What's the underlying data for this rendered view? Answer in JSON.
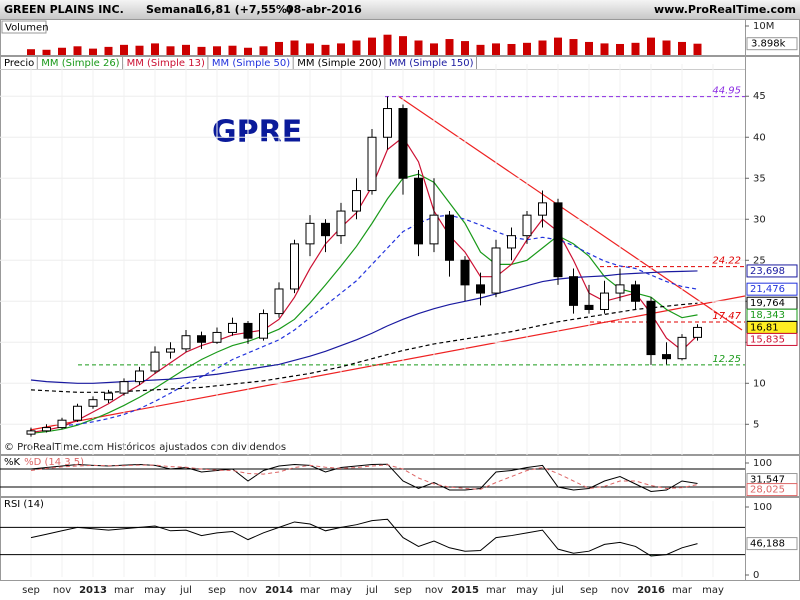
{
  "header": {
    "symbol": "GREEN PLAINS INC.",
    "period": "Semanal",
    "last": "16,81 (+7,55%)",
    "date": "08-abr-2016",
    "site": "www.ProRealTime.com"
  },
  "chart_data": [
    {
      "type": "bar",
      "title": "Volumen",
      "color": "#cc0000",
      "values": [
        2000000,
        1800000,
        2500000,
        3000000,
        2200000,
        2800000,
        3500000,
        3200000,
        4000000,
        3000000,
        3500000,
        2800000,
        3000000,
        3200000,
        2500000,
        3000000,
        4500000,
        5000000,
        4000000,
        3500000,
        4000000,
        5000000,
        6000000,
        7000000,
        6500000,
        5000000,
        4000000,
        5500000,
        4800000,
        3500000,
        4000000,
        3800000,
        4200000,
        5000000,
        6000000,
        5500000,
        4500000,
        4000000,
        3800000,
        4200000,
        6000000,
        5000000,
        4500000,
        3898000,
        null
      ],
      "value_labels": {
        "43": "3.898k"
      },
      "ylim": [
        0,
        10000000
      ],
      "yticks": [
        {
          "value": 10000000,
          "label": "10M"
        }
      ]
    },
    {
      "type": "candlestick",
      "price_name": "Precio",
      "categories": [
        "sep",
        null,
        "nov",
        null,
        "2013",
        null,
        "mar",
        null,
        "may",
        null,
        "jul",
        null,
        "sep",
        null,
        "nov",
        null,
        "2014",
        null,
        "mar",
        null,
        "may",
        null,
        "jul",
        null,
        "sep",
        null,
        "nov",
        null,
        "2015",
        null,
        "mar",
        null,
        "may",
        null,
        "jul",
        null,
        "sep",
        null,
        "nov",
        null,
        "2016",
        null,
        "mar",
        null,
        "may"
      ],
      "open": [
        3.8,
        4.2,
        4.6,
        5.5,
        7.2,
        8.0,
        8.8,
        10.2,
        11.5,
        13.8,
        14.2,
        15.8,
        15.0,
        16.2,
        17.3,
        15.5,
        18.5,
        21.5,
        27,
        29.5,
        28,
        31,
        33.5,
        40,
        43.5,
        35,
        27,
        30.5,
        25,
        22,
        21,
        26.5,
        28,
        30.5,
        32,
        23,
        19.5,
        19,
        21,
        22,
        20,
        13.5,
        13,
        15.6,
        null
      ],
      "high": [
        4.6,
        5.0,
        5.8,
        7.5,
        8.4,
        9.2,
        10.6,
        12.0,
        14.5,
        15.0,
        16.5,
        16.3,
        16.8,
        18.0,
        17.6,
        19.0,
        22.3,
        27.5,
        30.5,
        30,
        32,
        35,
        41,
        44.95,
        44,
        36,
        35,
        31,
        25.5,
        23.5,
        27.5,
        29,
        31,
        33.5,
        32.5,
        24,
        22,
        22.5,
        24,
        22.5,
        20.5,
        15,
        16,
        17.2,
        null
      ],
      "low": [
        3.5,
        4.0,
        4.4,
        5.3,
        6.9,
        7.6,
        8.5,
        9.8,
        11.2,
        13.0,
        13.8,
        14.2,
        14.8,
        15.8,
        14.8,
        15.2,
        18.0,
        21.0,
        25.5,
        26,
        27,
        30,
        33,
        38.5,
        33,
        25.5,
        26,
        23,
        20,
        19.5,
        20.5,
        25,
        27,
        29,
        22,
        18.5,
        18.5,
        18.5,
        20,
        19,
        12.25,
        12.3,
        12.8,
        15.2,
        null
      ],
      "close": [
        4.2,
        4.6,
        5.5,
        7.2,
        8.0,
        8.8,
        10.2,
        11.5,
        13.8,
        14.2,
        15.8,
        15.0,
        16.2,
        17.3,
        15.5,
        18.5,
        21.5,
        27,
        29.5,
        28,
        31,
        33.5,
        40,
        43.5,
        35,
        27,
        30.5,
        25,
        22,
        21,
        26.5,
        28,
        30.5,
        32,
        23,
        19.5,
        19,
        21,
        22,
        20,
        13.5,
        13,
        15.6,
        16.81,
        null
      ],
      "series": [
        {
          "name": "MM (Simple 26)",
          "color": "#1a9a1a",
          "dash": false,
          "values": [
            3.9,
            4.1,
            4.4,
            4.9,
            5.6,
            6.4,
            7.3,
            8.3,
            9.4,
            10.6,
            11.8,
            12.9,
            13.8,
            14.6,
            15.1,
            15.8,
            16.6,
            17.8,
            19.8,
            22,
            24.3,
            26.7,
            29.5,
            32.5,
            35,
            35.5,
            34.5,
            32,
            29.5,
            26,
            24.5,
            24.5,
            25,
            26.5,
            28,
            27,
            25.5,
            23,
            21.5,
            21,
            20.5,
            19,
            18,
            18.343,
            null
          ]
        },
        {
          "name": "MM (Simple 13)",
          "color": "#cc1133",
          "dash": false,
          "values": [
            4,
            4.3,
            4.7,
            5.5,
            6.5,
            7.5,
            8.7,
            9.8,
            11.2,
            12.5,
            13.8,
            14.6,
            15.2,
            15.9,
            16.2,
            16.5,
            17.8,
            20.5,
            24,
            27,
            29,
            30.8,
            34,
            38.5,
            40,
            37,
            31,
            28,
            26,
            23,
            23,
            24.5,
            27.5,
            30,
            28.5,
            25,
            21,
            20,
            20.5,
            21,
            18.5,
            15.5,
            14,
            15.835,
            null
          ]
        },
        {
          "name": "MM (Simple 50)",
          "color": "#2233dd",
          "dash": true,
          "values": [
            null,
            null,
            4.8,
            5,
            5.3,
            5.7,
            6.2,
            6.9,
            7.8,
            8.8,
            9.9,
            10.8,
            11.8,
            12.9,
            13.7,
            14.5,
            15.3,
            16.5,
            18,
            19.5,
            21,
            22.5,
            24.5,
            26.5,
            28.5,
            29.5,
            30.3,
            30.5,
            30,
            29.3,
            28.5,
            27.8,
            27.5,
            27.8,
            27.5,
            26.8,
            25.8,
            24.9,
            24.3,
            24,
            23.2,
            22.4,
            21.8,
            21.476,
            null
          ]
        },
        {
          "name": "MM (Simple 200)",
          "color": "#000000",
          "dash": true,
          "values": [
            9.2,
            9.1,
            9,
            8.9,
            8.9,
            8.9,
            9,
            9.1,
            9.2,
            9.3,
            9.4,
            9.5,
            9.7,
            9.9,
            10.1,
            10.3,
            10.6,
            10.9,
            11.2,
            11.6,
            12,
            12.5,
            13,
            13.5,
            14,
            14.4,
            14.8,
            15.1,
            15.4,
            15.7,
            16,
            16.3,
            16.7,
            17.1,
            17.5,
            17.8,
            18.1,
            18.4,
            18.7,
            19,
            19.2,
            19.4,
            19.6,
            19.764,
            null
          ]
        },
        {
          "name": "MM (Simple 150)",
          "color": "#1a1aa0",
          "dash": false,
          "values": [
            10.4,
            10.2,
            10.1,
            10,
            10,
            10.1,
            10.2,
            10.3,
            10.4,
            10.5,
            10.7,
            10.9,
            11.1,
            11.4,
            11.7,
            12,
            12.3,
            12.8,
            13.3,
            13.9,
            14.6,
            15.3,
            16.1,
            17,
            17.8,
            18.5,
            19.1,
            19.6,
            20,
            20.4,
            20.9,
            21.4,
            21.9,
            22.4,
            22.7,
            22.9,
            23,
            23.1,
            23.3,
            23.4,
            23.5,
            23.6,
            23.65,
            23.698,
            null
          ]
        }
      ],
      "levels": [
        {
          "value": 44.95,
          "label": "44.95",
          "color": "#8a2be2"
        },
        {
          "value": 24.22,
          "label": "24.22",
          "color": "#e00000"
        },
        {
          "value": 17.47,
          "label": "17.47",
          "color": "#e00000"
        },
        {
          "value": 12.25,
          "label": "12.25",
          "color": "#1a9a1a"
        }
      ],
      "last_values": [
        {
          "value": 23.698,
          "label": "23,698",
          "color": "#1a1aa0"
        },
        {
          "value": 21.476,
          "label": "21,476",
          "color": "#2233dd"
        },
        {
          "value": 19.764,
          "label": "19,764",
          "color": "#000000"
        },
        {
          "value": 18.343,
          "label": "18,343",
          "color": "#1a9a1a"
        },
        {
          "value": 16.81,
          "label": "16,81",
          "color": "#000000",
          "bg": "#ffee22"
        },
        {
          "value": 15.835,
          "label": "15,835",
          "color": "#cc1133"
        }
      ],
      "annotation": "GPRE",
      "note": "© ProRealTime.com Históricos ajustados con dividendos",
      "ylim": [
        1.5,
        48.2
      ],
      "yticks": [
        5,
        10,
        15,
        20,
        25,
        30,
        35,
        40,
        45
      ]
    },
    {
      "type": "line",
      "ylim": [
        0,
        100
      ],
      "yticks": [
        100
      ],
      "bands": [
        20,
        80
      ],
      "series": [
        {
          "name": "%K",
          "color": "#000000",
          "dash": false,
          "values": [
            80,
            85,
            90,
            95,
            92,
            90,
            93,
            95,
            92,
            80,
            85,
            70,
            75,
            80,
            40,
            75,
            90,
            95,
            92,
            70,
            85,
            90,
            95,
            96,
            40,
            15,
            35,
            10,
            10,
            15,
            70,
            75,
            85,
            92,
            20,
            10,
            15,
            40,
            55,
            30,
            5,
            10,
            40,
            31.547,
            null
          ],
          "last_label": "31,547"
        },
        {
          "name": "%D (14 3 5)",
          "color": "#dd6666",
          "dash": true,
          "values": [
            75,
            82,
            87,
            90,
            92,
            91,
            91,
            93,
            93,
            88,
            86,
            80,
            76,
            75,
            65,
            63,
            70,
            85,
            92,
            86,
            82,
            85,
            90,
            94,
            80,
            50,
            30,
            20,
            15,
            12,
            35,
            55,
            75,
            85,
            65,
            40,
            15,
            22,
            40,
            40,
            25,
            15,
            18,
            28.025,
            null
          ],
          "last_label": "28,025"
        }
      ]
    },
    {
      "type": "line",
      "ylim": [
        0,
        100
      ],
      "yticks": [
        0,
        100
      ],
      "bands": [
        30,
        70
      ],
      "series": [
        {
          "name": "RSI (14)",
          "color": "#000000",
          "dash": false,
          "values": [
            55,
            60,
            65,
            70,
            68,
            66,
            68,
            70,
            72,
            65,
            66,
            58,
            62,
            64,
            52,
            62,
            70,
            78,
            75,
            65,
            70,
            74,
            80,
            82,
            55,
            42,
            50,
            40,
            35,
            36,
            55,
            58,
            62,
            66,
            38,
            32,
            35,
            45,
            48,
            42,
            28,
            30,
            40,
            46.188,
            null
          ],
          "last_label": "46,188"
        }
      ]
    }
  ]
}
